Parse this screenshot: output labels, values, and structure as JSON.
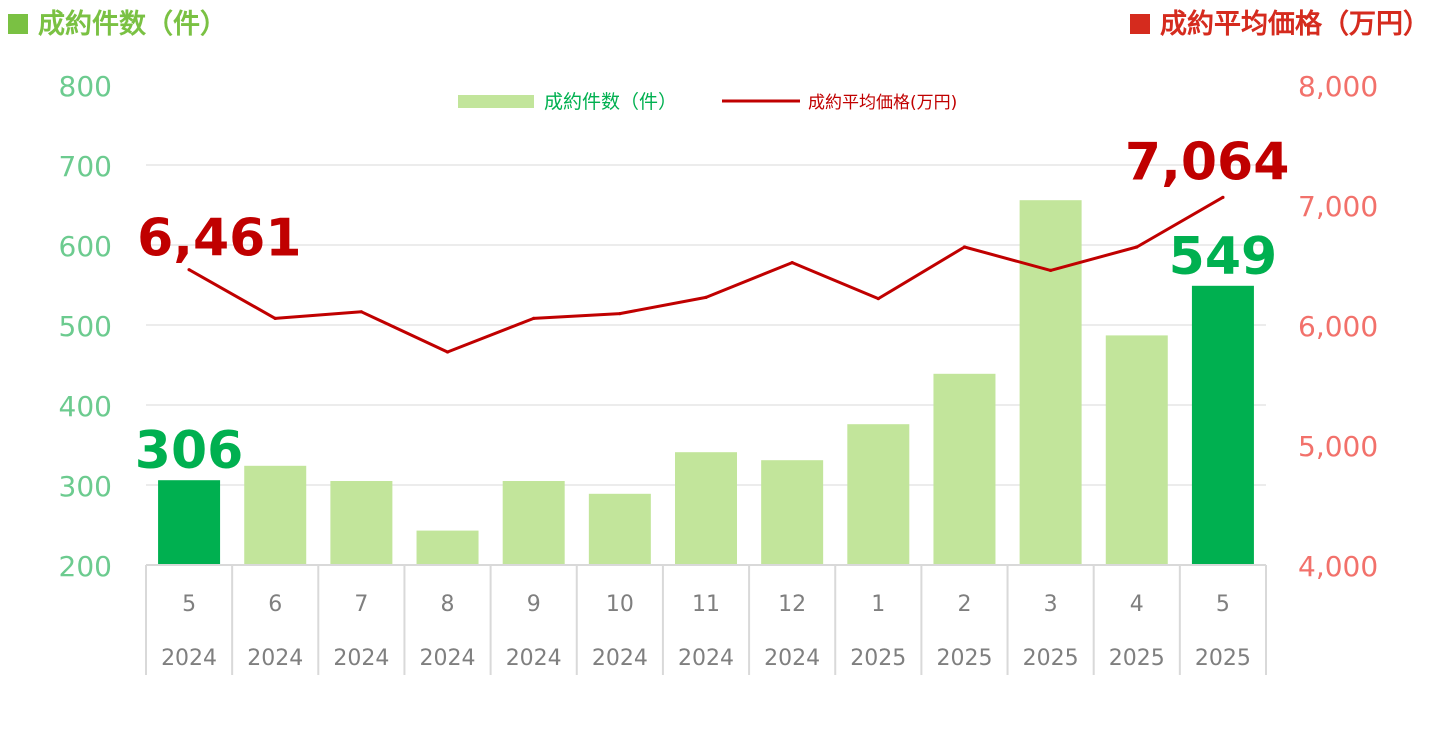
{
  "header": {
    "left_title": "成約件数（件）",
    "right_title": "成約平均価格（万円）"
  },
  "colors": {
    "bar_light": "#C2E59B",
    "bar_highlight": "#00B050",
    "line": "#C00000",
    "left_axis_text": "#6CCB8F",
    "right_axis_text": "#F2716B",
    "left_header": "#7AC143",
    "right_header": "#D52B1E",
    "grid": "#D9D9D9",
    "category_text": "#7F7F7F"
  },
  "chart_data": {
    "type": "bar",
    "categories": [
      "5",
      "6",
      "7",
      "8",
      "9",
      "10",
      "11",
      "12",
      "1",
      "2",
      "3",
      "4",
      "5"
    ],
    "category_years": [
      "2024",
      "2024",
      "2024",
      "2024",
      "2024",
      "2024",
      "2024",
      "2024",
      "2025",
      "2025",
      "2025",
      "2025",
      "2025"
    ],
    "series": [
      {
        "name": "成約件数（件）",
        "type": "bar",
        "axis": "left",
        "values": [
          306,
          324,
          305,
          243,
          305,
          289,
          341,
          331,
          376,
          439,
          656,
          487,
          549
        ],
        "highlight_indices": [
          0,
          12
        ]
      },
      {
        "name": "成約平均価格(万円)",
        "type": "line",
        "axis": "right",
        "values": [
          6461,
          6055,
          6110,
          5775,
          6055,
          6095,
          6230,
          6520,
          6220,
          6650,
          6455,
          6650,
          7064
        ]
      }
    ],
    "annotations": [
      {
        "series": 0,
        "index": 0,
        "label": "306"
      },
      {
        "series": 0,
        "index": 12,
        "label": "549"
      },
      {
        "series": 1,
        "index": 0,
        "label": "6,461"
      },
      {
        "series": 1,
        "index": 12,
        "label": "7,064"
      }
    ],
    "y_left": {
      "min": 200,
      "max": 800,
      "ticks": [
        "200",
        "300",
        "400",
        "500",
        "600",
        "700",
        "800"
      ]
    },
    "y_right": {
      "min": 4000,
      "max": 8000,
      "ticks": [
        "4,000",
        "5,000",
        "6,000",
        "7,000",
        "8,000"
      ]
    },
    "legend": [
      {
        "label": "成約件数（件）",
        "kind": "bar"
      },
      {
        "label": "成約平均価格(万円)",
        "kind": "line"
      }
    ],
    "legend_position": "top-center",
    "grid": true
  }
}
